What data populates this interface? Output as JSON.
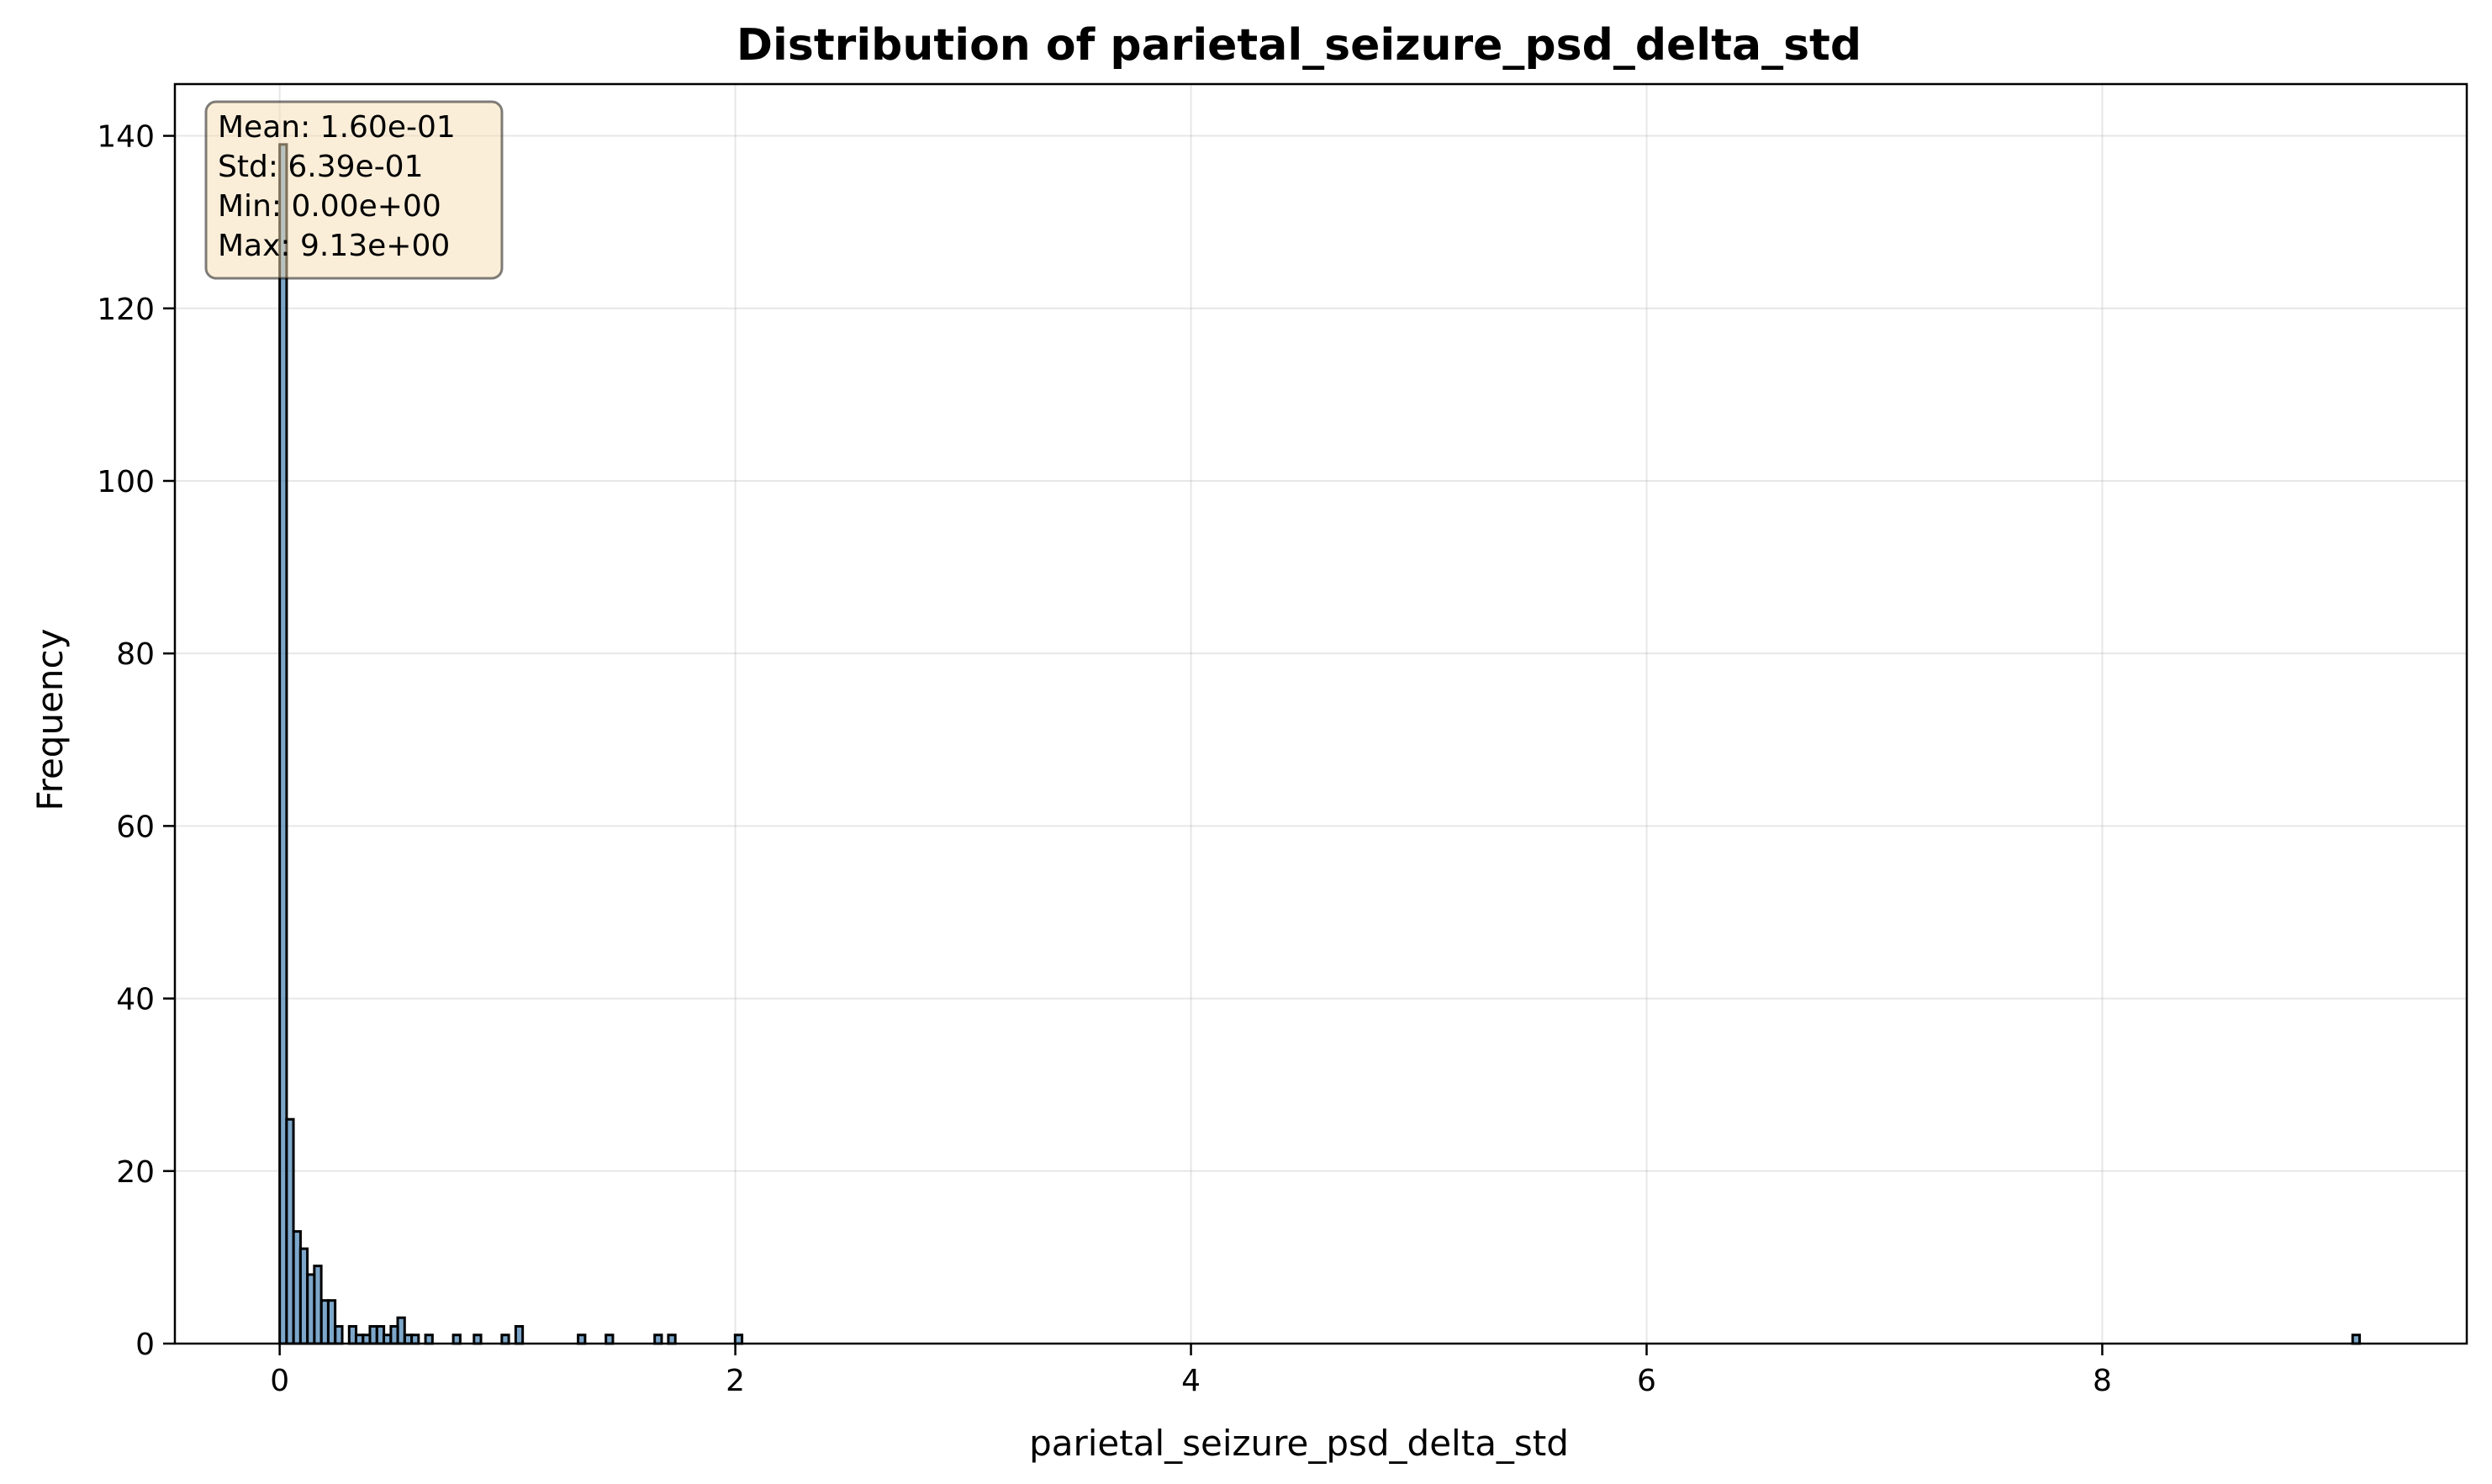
{
  "chart_data": {
    "type": "bar",
    "subtype": "histogram",
    "title": "Distribution of parietal_seizure_psd_delta_std",
    "xlabel": "parietal_seizure_psd_delta_std",
    "ylabel": "Frequency",
    "xlim": [
      -0.46,
      9.6
    ],
    "ylim": [
      0,
      146
    ],
    "xticks": [
      0,
      2,
      4,
      6,
      8
    ],
    "xtick_labels": [
      "0",
      "2",
      "4",
      "6",
      "8"
    ],
    "yticks": [
      0,
      20,
      40,
      60,
      80,
      100,
      120,
      140
    ],
    "ytick_labels": [
      "0",
      "20",
      "40",
      "60",
      "80",
      "100",
      "120",
      "140"
    ],
    "grid": true,
    "bin_width": 0.0305,
    "bins": [
      {
        "x": 0.0,
        "count": 139
      },
      {
        "x": 0.03,
        "count": 26
      },
      {
        "x": 0.061,
        "count": 13
      },
      {
        "x": 0.091,
        "count": 11
      },
      {
        "x": 0.122,
        "count": 8
      },
      {
        "x": 0.152,
        "count": 9
      },
      {
        "x": 0.183,
        "count": 5
      },
      {
        "x": 0.213,
        "count": 5
      },
      {
        "x": 0.244,
        "count": 2
      },
      {
        "x": 0.305,
        "count": 2
      },
      {
        "x": 0.335,
        "count": 1
      },
      {
        "x": 0.366,
        "count": 1
      },
      {
        "x": 0.396,
        "count": 2
      },
      {
        "x": 0.427,
        "count": 2
      },
      {
        "x": 0.457,
        "count": 1
      },
      {
        "x": 0.488,
        "count": 2
      },
      {
        "x": 0.518,
        "count": 3
      },
      {
        "x": 0.549,
        "count": 1
      },
      {
        "x": 0.579,
        "count": 1
      },
      {
        "x": 0.64,
        "count": 1
      },
      {
        "x": 0.762,
        "count": 1
      },
      {
        "x": 0.853,
        "count": 1
      },
      {
        "x": 0.975,
        "count": 1
      },
      {
        "x": 1.036,
        "count": 2
      },
      {
        "x": 1.31,
        "count": 1
      },
      {
        "x": 1.432,
        "count": 1
      },
      {
        "x": 1.646,
        "count": 1
      },
      {
        "x": 1.706,
        "count": 1
      },
      {
        "x": 1.999,
        "count": 1
      },
      {
        "x": 9.099,
        "count": 1
      }
    ],
    "annotation": {
      "lines": [
        "Mean: 1.60e-01",
        "Std: 6.39e-01",
        "Min: 0.00e+00",
        "Max: 9.13e+00"
      ],
      "placement": "top-left"
    },
    "colors": {
      "bar_fill": "#4682b4",
      "bar_edge": "#000000",
      "annotation_bg": "#f5deb3",
      "grid": "#b0b0b0"
    }
  }
}
